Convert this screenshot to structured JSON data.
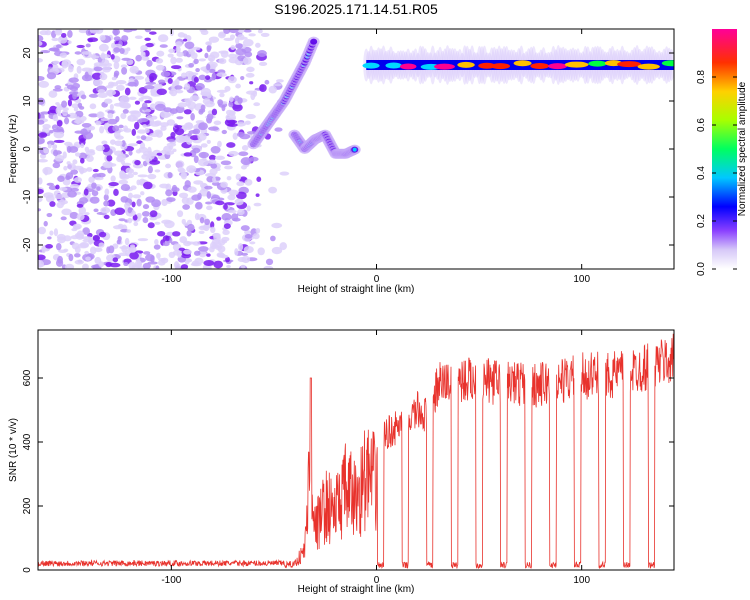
{
  "figure": {
    "title": "S196.2025.171.14.51.R05"
  },
  "chart_data": [
    {
      "type": "heatmap",
      "xlabel": "Height of straight line (km)",
      "ylabel": "Frequency (Hz)",
      "xlim": [
        -165,
        145
      ],
      "ylim": [
        -25,
        25
      ],
      "x_ticks": [
        -100,
        0,
        100
      ],
      "y_ticks": [
        -20,
        -10,
        0,
        10,
        20
      ],
      "colorbar": {
        "label": "Normalized spectral amplitude",
        "range": [
          0,
          1
        ],
        "ticks": [
          "0.0",
          "0.2",
          "0.4",
          "0.6",
          "0.8"
        ],
        "colors": [
          "#ffffff",
          "#b59cf2",
          "#6a00ff",
          "#0000ff",
          "#00d8ff",
          "#00ff40",
          "#c8ff00",
          "#ffc000",
          "#ff2000",
          "#ff0090"
        ]
      },
      "traces": [
        {
          "name": "noise region",
          "x": [
            -165,
            -55
          ],
          "level": 0.15
        },
        {
          "name": "rising streak",
          "points": [
            [
              -60,
              1
            ],
            [
              -55,
              4
            ],
            [
              -50,
              7
            ],
            [
              -45,
              10
            ],
            [
              -40,
              14
            ],
            [
              -35,
              18
            ],
            [
              -30,
              23
            ]
          ]
        },
        {
          "name": "lower streak",
          "points": [
            [
              -40,
              3
            ],
            [
              -35,
              0
            ],
            [
              -30,
              2
            ],
            [
              -25,
              3
            ],
            [
              -20,
              -1
            ],
            [
              -15,
              -1
            ],
            [
              -10,
              0
            ]
          ]
        },
        {
          "name": "tone",
          "x": [
            -5,
            145
          ],
          "freq": [
            17,
            18
          ]
        }
      ]
    },
    {
      "type": "line",
      "xlabel": "Height of straight line (km)",
      "ylabel": "SNR (10 * v/v)",
      "xlim": [
        -165,
        145
      ],
      "ylim": [
        0,
        750
      ],
      "x_ticks": [
        -100,
        0,
        100
      ],
      "y_ticks": [
        0,
        200,
        400,
        600
      ],
      "series": [
        {
          "color": "#e8322c",
          "x": [
            -165,
            -60,
            -45,
            -40,
            -35,
            -32,
            -30,
            -25,
            -20,
            -15,
            -10,
            -5,
            0,
            5,
            10,
            15,
            20,
            25,
            30,
            40,
            60,
            80,
            100,
            120,
            145
          ],
          "y": [
            20,
            20,
            25,
            30,
            100,
            600,
            200,
            320,
            300,
            400,
            350,
            470,
            420,
            480,
            500,
            520,
            560,
            540,
            650,
            670,
            660,
            650,
            680,
            690,
            740
          ]
        }
      ]
    }
  ]
}
